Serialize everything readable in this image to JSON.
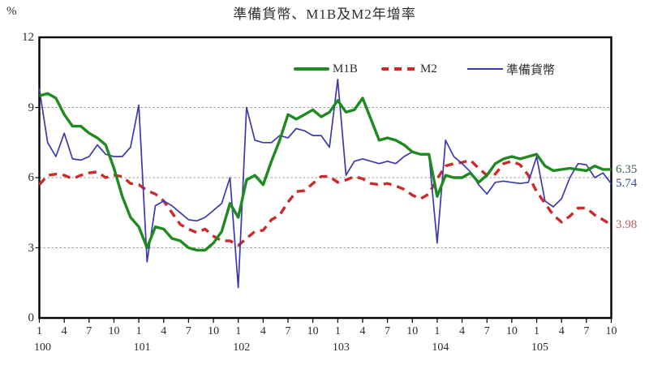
{
  "title": "準備貨幣、M1B及M2年增率",
  "y_axis_unit": "%",
  "legend": {
    "position": "top-center",
    "items": [
      {
        "label": "M1B"
      },
      {
        "label": "M2"
      },
      {
        "label": "準備貨幣"
      }
    ]
  },
  "end_labels": [
    {
      "series": "M1B",
      "value": "6.35",
      "color": "#44624f"
    },
    {
      "series": "準備貨幣",
      "value": "5.74",
      "color": "#3b49a0"
    },
    {
      "series": "M2",
      "value": "3.98",
      "color": "#c35f5f"
    }
  ],
  "chart_data": {
    "type": "line",
    "title": "準備貨幣、M1B及M2年增率",
    "ylabel": "%",
    "ylim": [
      0,
      12
    ],
    "yticks": [
      0,
      3,
      6,
      9,
      12
    ],
    "grid_y": [
      3,
      6,
      9
    ],
    "grid_style": "dashed-horizontal",
    "x_unit": "month",
    "x_start": {
      "year": "100",
      "month": 1
    },
    "x_end": {
      "year": "105",
      "month": 10
    },
    "months_total": 70,
    "month_tick_interval": 3,
    "month_tick_label_cycle": [
      "1",
      "4",
      "7",
      "10"
    ],
    "year_labels": [
      {
        "label": "100",
        "month_index": 0
      },
      {
        "label": "101",
        "month_index": 12
      },
      {
        "label": "102",
        "month_index": 24
      },
      {
        "label": "103",
        "month_index": 36
      },
      {
        "label": "104",
        "month_index": 48
      },
      {
        "label": "105",
        "month_index": 60
      }
    ],
    "series": [
      {
        "name": "M2",
        "color": "#cc2b2b",
        "style": "dashed",
        "width": 3.4,
        "values": [
          5.7,
          6.1,
          6.15,
          6.1,
          5.95,
          6.1,
          6.2,
          6.25,
          6.0,
          6.1,
          6.05,
          5.75,
          5.7,
          5.45,
          5.3,
          5.0,
          4.5,
          4.0,
          3.8,
          3.65,
          3.8,
          3.5,
          3.3,
          3.3,
          3.1,
          3.4,
          3.7,
          3.75,
          4.2,
          4.4,
          4.95,
          5.4,
          5.45,
          5.75,
          6.05,
          6.05,
          5.8,
          5.9,
          6.05,
          5.95,
          5.75,
          5.7,
          5.75,
          5.65,
          5.5,
          5.25,
          5.1,
          5.3,
          5.95,
          6.5,
          6.6,
          6.65,
          6.75,
          6.4,
          6.1,
          6.15,
          6.6,
          6.7,
          6.55,
          6.1,
          5.4,
          4.9,
          4.4,
          4.1,
          4.35,
          4.7,
          4.7,
          4.4,
          4.2,
          3.98
        ]
      },
      {
        "name": "準備貨幣",
        "color": "#3a3aad",
        "style": "solid",
        "width": 1.7,
        "values": [
          9.8,
          7.5,
          6.9,
          7.9,
          6.8,
          6.75,
          6.9,
          7.4,
          7.0,
          6.9,
          6.9,
          7.3,
          9.1,
          2.4,
          4.8,
          5.0,
          4.8,
          4.5,
          4.2,
          4.15,
          4.3,
          4.6,
          4.9,
          6.0,
          1.3,
          9.0,
          7.6,
          7.5,
          7.5,
          7.8,
          7.7,
          8.1,
          8.0,
          7.8,
          7.8,
          7.3,
          10.2,
          6.1,
          6.7,
          6.8,
          6.7,
          6.6,
          6.7,
          6.6,
          6.9,
          7.1,
          7.0,
          7.0,
          3.2,
          7.6,
          6.9,
          6.6,
          6.25,
          5.7,
          5.3,
          5.8,
          5.85,
          5.8,
          5.75,
          5.8,
          6.9,
          5.0,
          4.75,
          5.1,
          6.0,
          6.6,
          6.55,
          6.0,
          6.2,
          5.74
        ]
      },
      {
        "name": "M1B",
        "color": "#1f8a1f",
        "style": "solid",
        "width": 3.4,
        "values": [
          9.5,
          9.6,
          9.4,
          8.7,
          8.2,
          8.2,
          7.9,
          7.7,
          7.4,
          6.4,
          5.2,
          4.3,
          3.9,
          3.0,
          3.9,
          3.8,
          3.4,
          3.3,
          3.0,
          2.9,
          2.9,
          3.2,
          3.7,
          4.9,
          4.3,
          5.9,
          6.1,
          5.7,
          6.7,
          7.6,
          8.7,
          8.5,
          8.7,
          8.9,
          8.6,
          8.8,
          9.3,
          8.8,
          8.9,
          9.4,
          8.5,
          7.6,
          7.7,
          7.6,
          7.4,
          7.1,
          7.0,
          7.0,
          5.2,
          6.1,
          6.0,
          6.0,
          6.2,
          5.8,
          6.1,
          6.6,
          6.8,
          6.9,
          6.8,
          6.9,
          7.0,
          6.5,
          6.3,
          6.35,
          6.4,
          6.35,
          6.3,
          6.5,
          6.35,
          6.35
        ]
      }
    ],
    "final_values": {
      "M1B": 6.35,
      "準備貨幣": 5.74,
      "M2": 3.98
    }
  }
}
